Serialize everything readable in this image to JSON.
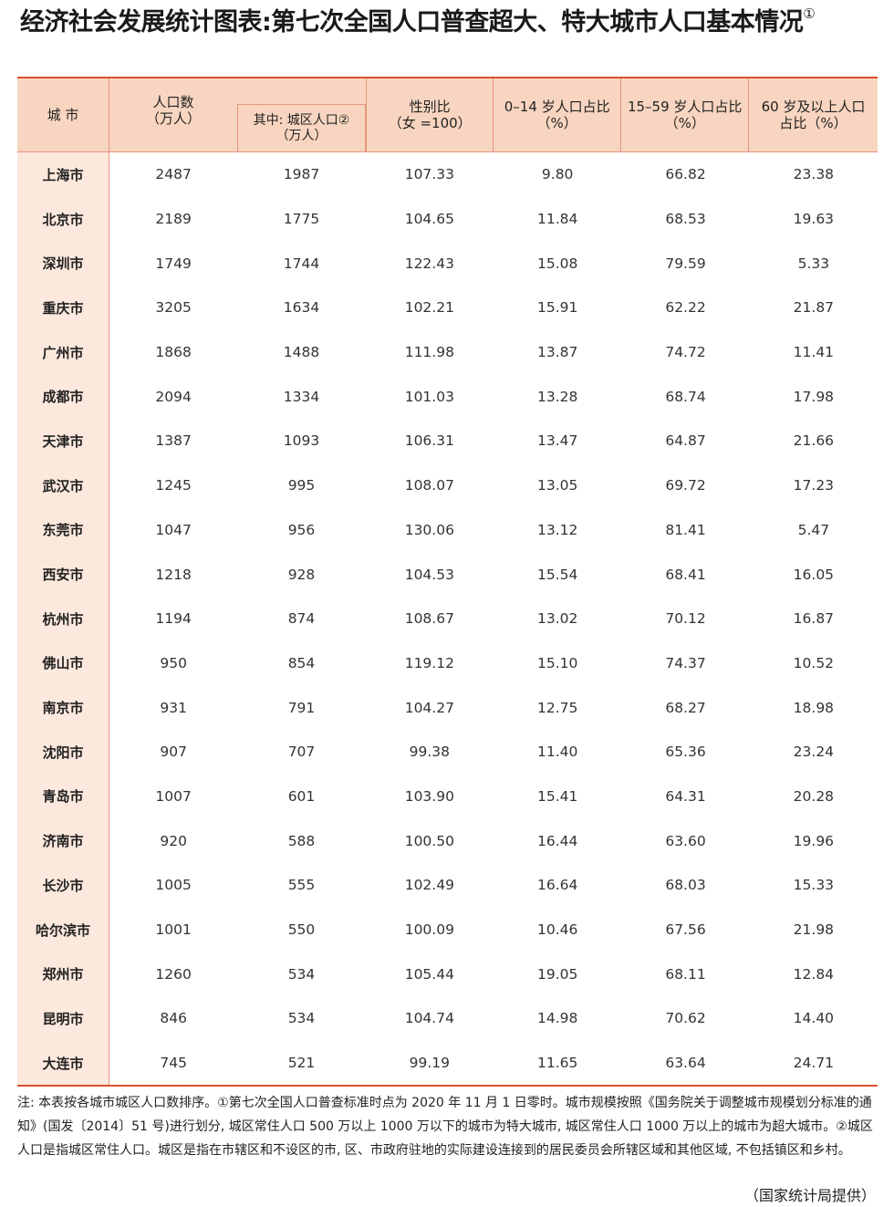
{
  "title": "经济社会发展统计图表:第七次全国人口普查超大、特大城市人口基本情况",
  "title_note_mark": "①",
  "colors": {
    "header_bg": "#f8d5c0",
    "city_col_bg": "#fce8dc",
    "rule": "#d9502d"
  },
  "headers": {
    "city": "城 市",
    "population": "人口数\n（万人）",
    "urban_population": "其中: 城区人口②\n（万人）",
    "sex_ratio": "性别比\n（女 =100）",
    "age_0_14": "0–14 岁人口占比\n（%）",
    "age_15_59": "15–59 岁人口占比\n（%）",
    "age_60_plus": "60 岁及以上人口\n占比（%）"
  },
  "rows": [
    [
      "上海市",
      "2487",
      "1987",
      "107.33",
      "9.80",
      "66.82",
      "23.38"
    ],
    [
      "北京市",
      "2189",
      "1775",
      "104.65",
      "11.84",
      "68.53",
      "19.63"
    ],
    [
      "深圳市",
      "1749",
      "1744",
      "122.43",
      "15.08",
      "79.59",
      "5.33"
    ],
    [
      "重庆市",
      "3205",
      "1634",
      "102.21",
      "15.91",
      "62.22",
      "21.87"
    ],
    [
      "广州市",
      "1868",
      "1488",
      "111.98",
      "13.87",
      "74.72",
      "11.41"
    ],
    [
      "成都市",
      "2094",
      "1334",
      "101.03",
      "13.28",
      "68.74",
      "17.98"
    ],
    [
      "天津市",
      "1387",
      "1093",
      "106.31",
      "13.47",
      "64.87",
      "21.66"
    ],
    [
      "武汉市",
      "1245",
      "995",
      "108.07",
      "13.05",
      "69.72",
      "17.23"
    ],
    [
      "东莞市",
      "1047",
      "956",
      "130.06",
      "13.12",
      "81.41",
      "5.47"
    ],
    [
      "西安市",
      "1218",
      "928",
      "104.53",
      "15.54",
      "68.41",
      "16.05"
    ],
    [
      "杭州市",
      "1194",
      "874",
      "108.67",
      "13.02",
      "70.12",
      "16.87"
    ],
    [
      "佛山市",
      "950",
      "854",
      "119.12",
      "15.10",
      "74.37",
      "10.52"
    ],
    [
      "南京市",
      "931",
      "791",
      "104.27",
      "12.75",
      "68.27",
      "18.98"
    ],
    [
      "沈阳市",
      "907",
      "707",
      "99.38",
      "11.40",
      "65.36",
      "23.24"
    ],
    [
      "青岛市",
      "1007",
      "601",
      "103.90",
      "15.41",
      "64.31",
      "20.28"
    ],
    [
      "济南市",
      "920",
      "588",
      "100.50",
      "16.44",
      "63.60",
      "19.96"
    ],
    [
      "长沙市",
      "1005",
      "555",
      "102.49",
      "16.64",
      "68.03",
      "15.33"
    ],
    [
      "哈尔滨市",
      "1001",
      "550",
      "100.09",
      "10.46",
      "67.56",
      "21.98"
    ],
    [
      "郑州市",
      "1260",
      "534",
      "105.44",
      "19.05",
      "68.11",
      "12.84"
    ],
    [
      "昆明市",
      "846",
      "534",
      "104.74",
      "14.98",
      "70.62",
      "14.40"
    ],
    [
      "大连市",
      "745",
      "521",
      "99.19",
      "11.65",
      "63.64",
      "24.71"
    ]
  ],
  "note": "注: 本表按各城市城区人口数排序。①第七次全国人口普查标准时点为 2020 年 11 月 1 日零时。城市规模按照《国务院关于调整城市规模划分标准的通知》(国发〔2014〕51 号)进行划分, 城区常住人口 500 万以上 1000 万以下的城市为特大城市, 城区常住人口 1000 万以上的城市为超大城市。②城区人口是指城区常住人口。城区是指在市辖区和不设区的市, 区、市政府驻地的实际建设连接到的居民委员会所辖区域和其他区域, 不包括镇区和乡村。",
  "source": "（国家统计局提供）"
}
